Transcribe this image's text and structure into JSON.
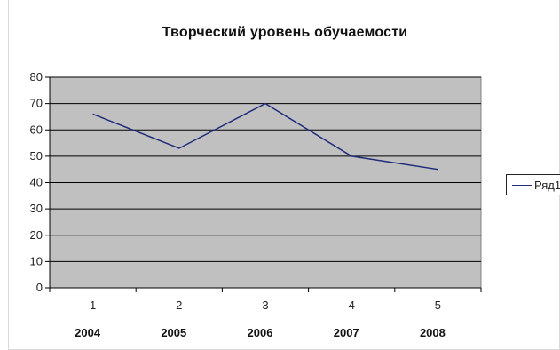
{
  "chart_data": {
    "type": "line",
    "title": "Творческий уровень обучаемости",
    "categories": [
      "1",
      "2",
      "3",
      "4",
      "5"
    ],
    "category_sublabels": [
      "2004",
      "2005",
      "2006",
      "2007",
      "2008"
    ],
    "series": [
      {
        "name": "Ряд1",
        "values": [
          66,
          53,
          70,
          50,
          45
        ],
        "color": "#1f2a7a"
      }
    ],
    "ylim": [
      0,
      80
    ],
    "yticks": [
      "0",
      "10",
      "20",
      "30",
      "40",
      "50",
      "60",
      "70",
      "80"
    ],
    "xlabel": "",
    "ylabel": "",
    "grid": true,
    "plot_background": "#c0c0c0",
    "legend_position": "right"
  }
}
